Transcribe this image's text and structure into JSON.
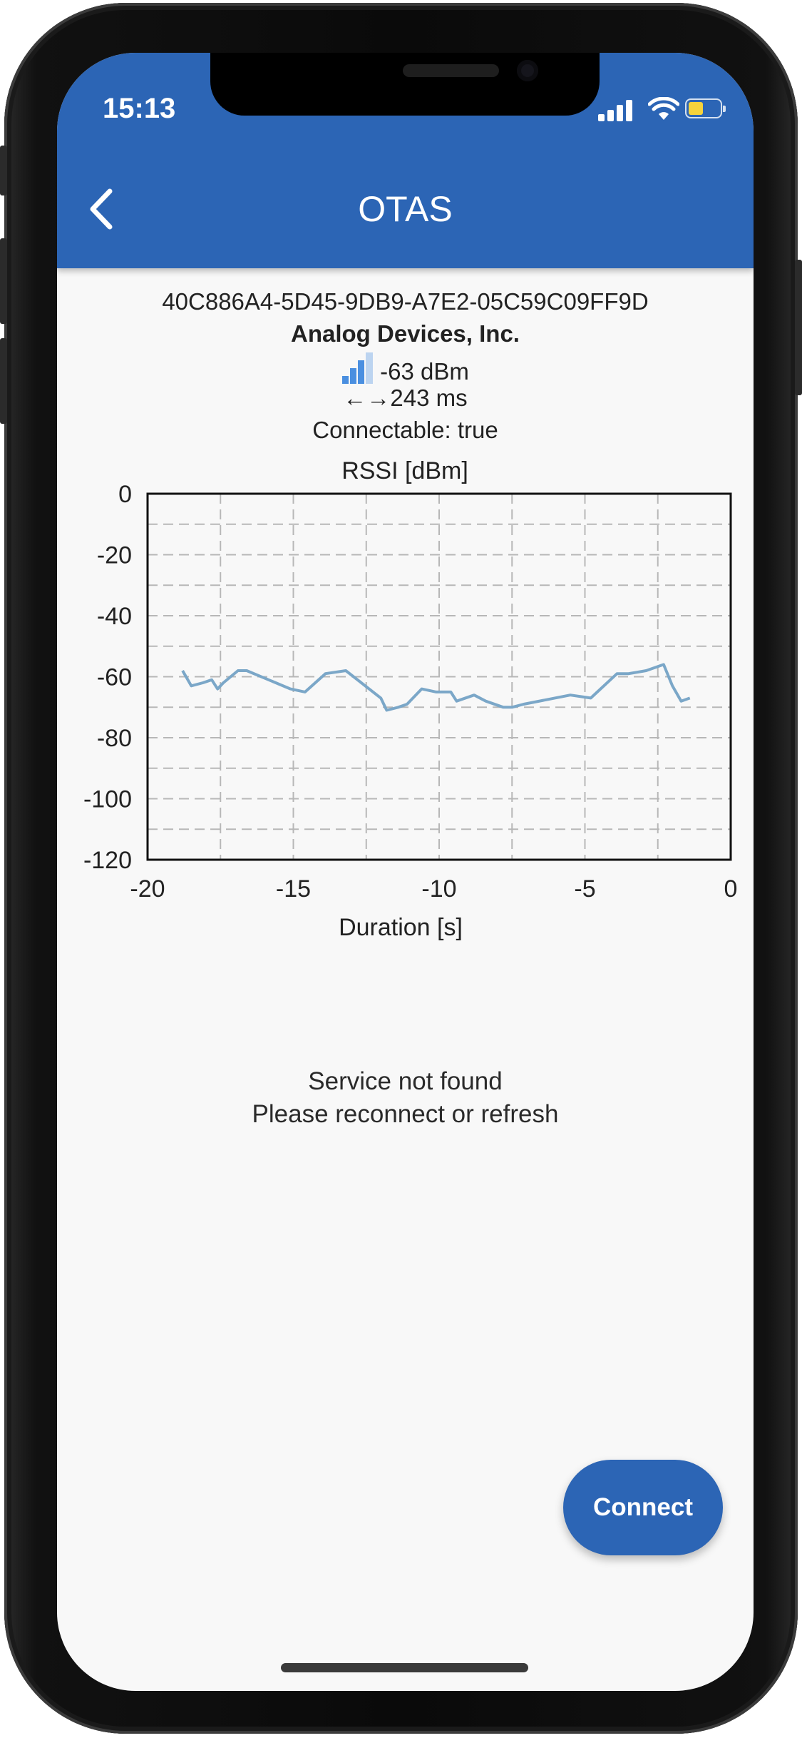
{
  "status_bar": {
    "time": "15:13"
  },
  "nav": {
    "title": "OTAS"
  },
  "device": {
    "uuid": "40C886A4-5D45-9DB9-A7E2-05C59C09FF9D",
    "manufacturer": "Analog Devices, Inc.",
    "rssi": "-63 dBm",
    "interval_arrows": "←→",
    "interval": "243 ms",
    "connectable": "Connectable: true"
  },
  "chart_data": {
    "type": "line",
    "title": "RSSI [dBm]",
    "xlabel": "Duration [s]",
    "ylabel": "",
    "xlim": [
      -20,
      0
    ],
    "ylim": [
      -120,
      0
    ],
    "x_ticks": [
      "-20",
      "-15",
      "-10",
      "-5",
      "0"
    ],
    "y_ticks": [
      "0",
      "-20",
      "-40",
      "-60",
      "-80",
      "-100",
      "-120"
    ],
    "grid": true,
    "series": [
      {
        "color": "#7ba7c8",
        "x": [
          -18.8,
          -18.5,
          -18.1,
          -17.8,
          -17.6,
          -17.4,
          -16.9,
          -16.6,
          -15.1,
          -14.6,
          -13.9,
          -13.2,
          -12.0,
          -11.8,
          -11.4,
          -11.1,
          -10.6,
          -10.1,
          -9.6,
          -9.4,
          -8.8,
          -8.4,
          -7.8,
          -7.5,
          -7.1,
          -5.5,
          -4.8,
          -3.9,
          -3.5,
          -2.9,
          -2.3,
          -2.0,
          -1.7,
          -1.4
        ],
        "y": [
          -58,
          -63,
          -62,
          -61,
          -64,
          -62,
          -58,
          -58,
          -64,
          -65,
          -59,
          -58,
          -67,
          -71,
          -70,
          -69,
          -64,
          -65,
          -65,
          -68,
          -66,
          -68,
          -70,
          -70,
          -69,
          -66,
          -67,
          -59,
          -59,
          -58,
          -56,
          -63,
          -68,
          -67
        ]
      }
    ]
  },
  "service_message": {
    "line1": "Service not found",
    "line2": "Please reconnect or refresh"
  },
  "connect_button": {
    "label": "Connect"
  }
}
